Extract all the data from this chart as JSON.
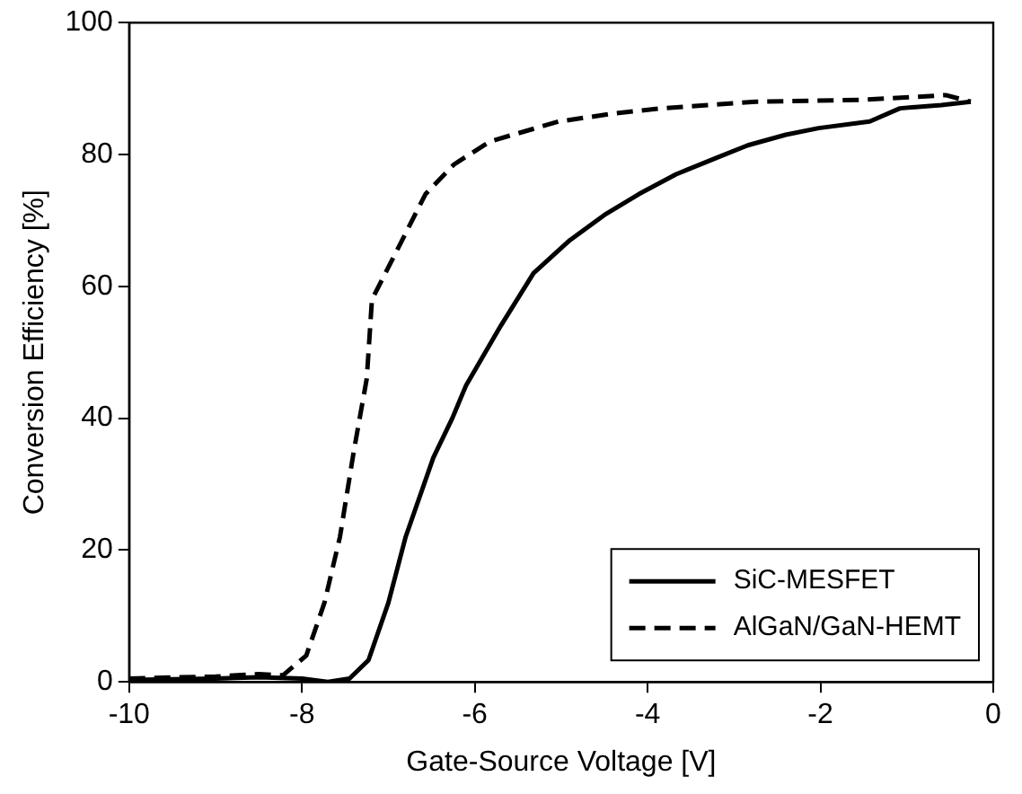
{
  "chart_data": {
    "type": "line",
    "xlabel": "Gate-Source Voltage [V]",
    "ylabel": "Conversion Efficiency [%]",
    "xlim": [
      -10,
      0
    ],
    "xticks": [
      -10,
      -8,
      -6,
      -4,
      -2,
      0
    ],
    "ylim": [
      0,
      100
    ],
    "yticks": [
      0,
      20,
      40,
      60,
      80,
      100
    ],
    "grid": false,
    "legend": "bottom right",
    "marker": "none",
    "series": [
      {
        "name": "SiC-MESFET",
        "color": "#000000",
        "line_style": "solid",
        "x": [
          -10,
          -9,
          -8.5,
          -8,
          -7.7,
          -7.45,
          -7.23,
          -7.0,
          -6.8,
          -6.48,
          -6.26,
          -6.1,
          -5.7,
          -5.32,
          -4.9,
          -4.48,
          -4.1,
          -3.67,
          -3.2,
          -2.84,
          -2.4,
          -2.02,
          -1.43,
          -1.08,
          -0.6,
          -0.26
        ],
        "values": [
          0.3,
          0.5,
          0.7,
          0.5,
          0,
          0.5,
          3.3,
          12,
          22,
          34,
          40,
          45,
          54,
          62,
          67,
          71,
          74,
          77,
          79.5,
          81.4,
          83,
          84,
          85,
          87,
          87.5,
          88
        ]
      },
      {
        "name": "AlGaN/GaN-HEMT",
        "color": "#000000",
        "line_style": "dashed",
        "x": [
          -10,
          -9.5,
          -9,
          -8.5,
          -8.22,
          -7.95,
          -7.74,
          -7.56,
          -7.4,
          -7.25,
          -7.19,
          -6.86,
          -6.57,
          -6.24,
          -5.82,
          -5.03,
          -4.4,
          -3.85,
          -2.75,
          -1.5,
          -0.55,
          -0.26
        ],
        "values": [
          0.5,
          0.7,
          0.8,
          1.2,
          1,
          4,
          12,
          22,
          35,
          46,
          58,
          66.5,
          74,
          78.5,
          82,
          85,
          86.2,
          87,
          88,
          88.3,
          89,
          88
        ]
      }
    ]
  }
}
